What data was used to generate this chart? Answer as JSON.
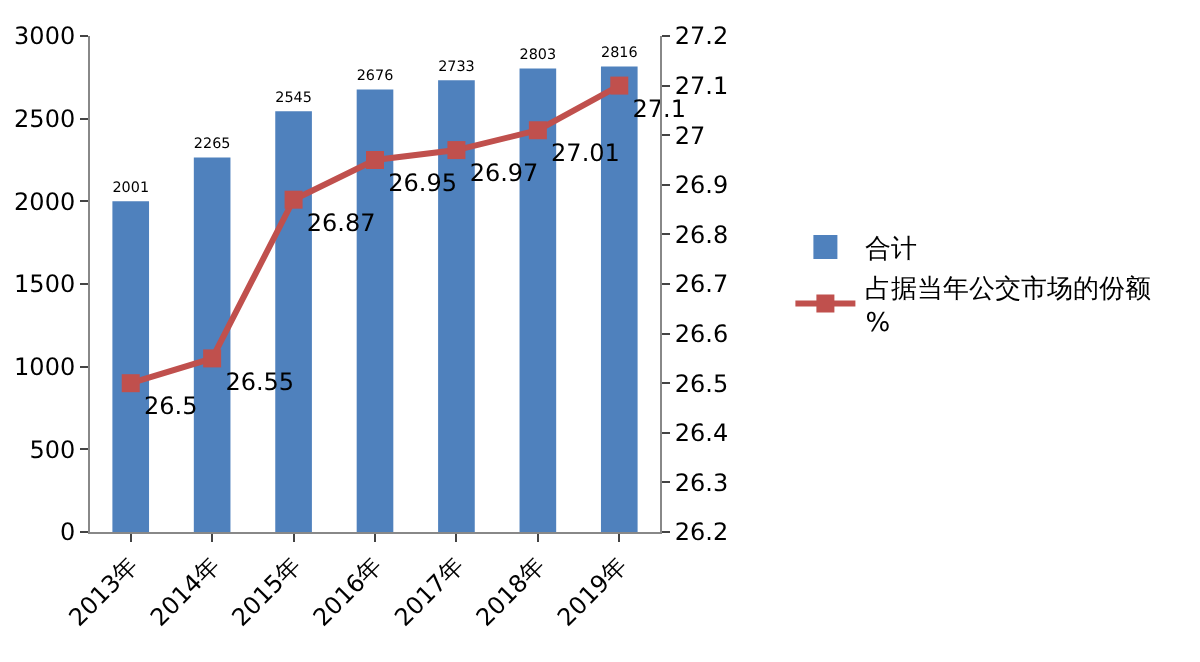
{
  "chart_data": {
    "type": "bar",
    "categories": [
      "2013年",
      "2014年",
      "2015年",
      "2016年",
      "2017年",
      "2018年",
      "2019年"
    ],
    "series": [
      {
        "name": "合计",
        "color": "#4f81bd",
        "values": [
          2001,
          2265,
          2545,
          2676,
          2733,
          2803,
          2816
        ]
      },
      {
        "name": "占据当年公交市场的份额%",
        "type": "line",
        "axis": "y2",
        "color": "#c0504d",
        "marker": "square",
        "values": [
          26.5,
          26.55,
          26.87,
          26.95,
          26.97,
          27.01,
          27.1
        ]
      }
    ],
    "ylim": [
      0,
      3000
    ],
    "yticks": [
      0,
      500,
      1000,
      1500,
      2000,
      2500,
      3000
    ],
    "y2lim": [
      26.2,
      27.2
    ],
    "y2ticks": [
      26.2,
      26.3,
      26.4,
      26.5,
      26.6,
      26.7,
      26.8,
      26.9,
      27,
      27.1,
      27.2
    ],
    "data_labels": true,
    "legend": "right"
  }
}
